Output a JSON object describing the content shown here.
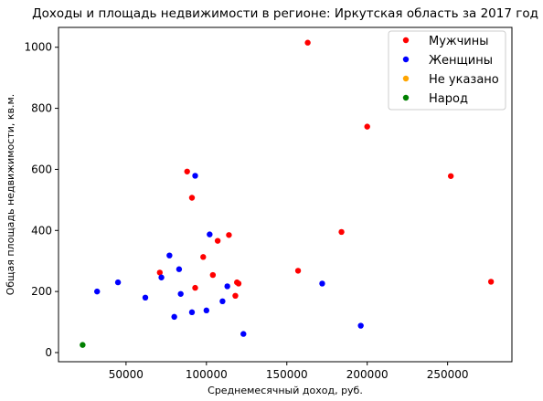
{
  "chart_data": {
    "type": "scatter",
    "title": "Доходы и площадь недвижимости в регионе: Иркутская область за 2017 год",
    "xlabel": "Среднемесячный доход, руб.",
    "ylabel": "Общая площадь недвижимости, кв.м.",
    "xlim": [
      8000,
      290000
    ],
    "ylim": [
      -30,
      1065
    ],
    "xticks": [
      50000,
      100000,
      150000,
      200000,
      250000
    ],
    "yticks": [
      0,
      200,
      400,
      600,
      800,
      1000
    ],
    "grid": false,
    "legend_position": "top-right",
    "series": [
      {
        "name": "Мужчины",
        "color": "#ff0000",
        "points": [
          [
            163000,
            1015
          ],
          [
            200000,
            740
          ],
          [
            252000,
            578
          ],
          [
            88000,
            593
          ],
          [
            91000,
            507
          ],
          [
            184000,
            395
          ],
          [
            114000,
            385
          ],
          [
            107000,
            366
          ],
          [
            98000,
            313
          ],
          [
            157000,
            268
          ],
          [
            71000,
            262
          ],
          [
            104000,
            254
          ],
          [
            277000,
            232
          ],
          [
            119000,
            230
          ],
          [
            120000,
            226
          ],
          [
            93000,
            212
          ],
          [
            118000,
            186
          ]
        ]
      },
      {
        "name": "Женщины",
        "color": "#0000ff",
        "points": [
          [
            93000,
            579
          ],
          [
            102000,
            387
          ],
          [
            77000,
            318
          ],
          [
            83000,
            273
          ],
          [
            72000,
            246
          ],
          [
            45000,
            230
          ],
          [
            172000,
            226
          ],
          [
            113000,
            217
          ],
          [
            32000,
            200
          ],
          [
            84000,
            192
          ],
          [
            62000,
            180
          ],
          [
            110000,
            168
          ],
          [
            100000,
            138
          ],
          [
            91000,
            132
          ],
          [
            80000,
            117
          ],
          [
            196000,
            88
          ],
          [
            123000,
            61
          ]
        ]
      },
      {
        "name": "Не указано",
        "color": "#ffa500",
        "points": []
      },
      {
        "name": "Народ",
        "color": "#008000",
        "points": [
          [
            23000,
            25
          ]
        ]
      }
    ]
  }
}
